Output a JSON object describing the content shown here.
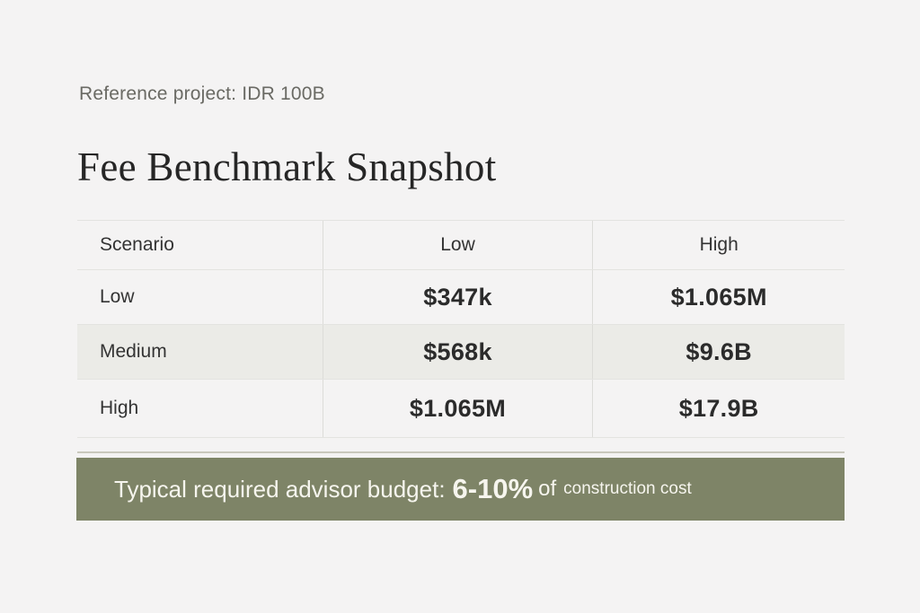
{
  "header": {
    "subtitle": "Reference project: IDR 100B",
    "title": "Fee Benchmark Snapshot"
  },
  "table": {
    "columns": [
      "Scenario",
      "Low",
      "High"
    ],
    "rows": [
      {
        "scenario": "Low",
        "low": "$347k",
        "high": "$1.065M"
      },
      {
        "scenario": "Medium",
        "low": "$568k",
        "high": "$9.6B"
      },
      {
        "scenario": "High",
        "low": "$1.065M",
        "high": "$17.9B"
      }
    ]
  },
  "banner": {
    "lead": "Typical required advisor budget:",
    "percentage": "6-10%",
    "of": "of",
    "tail": "construction cost"
  },
  "colors": {
    "background": "#f4f3f3",
    "banner": "#7e8467",
    "highlight_row": "#ebebe7",
    "banner_text": "#f6f5ee"
  }
}
